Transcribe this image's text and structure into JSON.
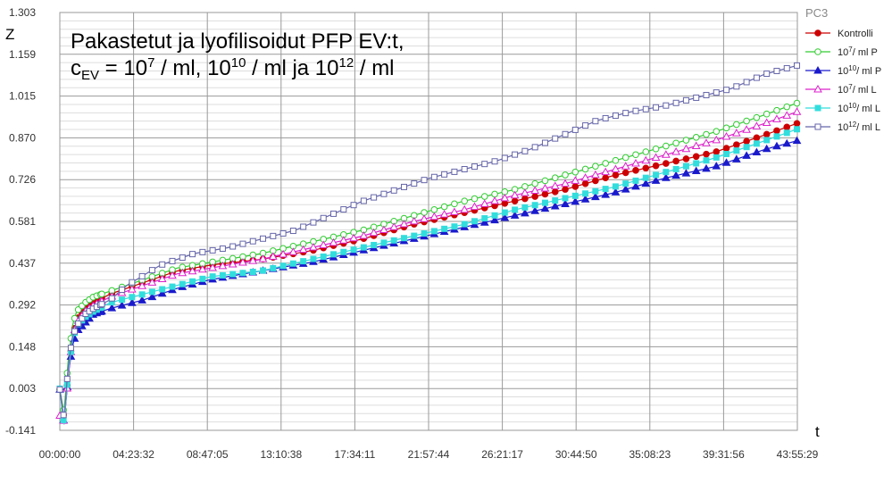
{
  "chart_data": {
    "type": "line",
    "title_line1": "Pakastetut ja lyofilisoidut PFP EV:t,",
    "title_line2": {
      "c": "c",
      "c_sub": "EV",
      "eq": " = 10",
      "e1": "7",
      "mid1": " / ml, 10",
      "e2": "10",
      "mid2": " / ml ja 10",
      "e3": "12",
      "end": " / ml"
    },
    "xlabel": "t",
    "ylabel": "Z",
    "legend_title": "PC3",
    "x_ticks": [
      "00:00:00",
      "04:23:32",
      "08:47:05",
      "13:10:38",
      "17:34:11",
      "21:57:44",
      "26:21:17",
      "30:44:50",
      "35:08:23",
      "39:31:56",
      "43:55:29"
    ],
    "y_ticks": [
      "1.303",
      "1.159",
      "1.015",
      "0.870",
      "0.726",
      "0.581",
      "0.437",
      "0.292",
      "0.148",
      "0.003",
      "-0.141"
    ],
    "x_range_hours": [
      0,
      43.925
    ],
    "y_range": [
      -0.141,
      1.303
    ],
    "grid": true,
    "legend_position": "right",
    "series": [
      {
        "name": "Kontrolli",
        "label": {
          "base": "Kontrolli",
          "sup": "",
          "rest": ""
        },
        "color": "#cc0000",
        "marker": "circle",
        "filled": true,
        "points": [
          [
            0,
            0.0
          ],
          [
            0.25,
            -0.1
          ],
          [
            0.5,
            0.05
          ],
          [
            0.75,
            0.18
          ],
          [
            1.0,
            0.24
          ],
          [
            1.5,
            0.28
          ],
          [
            2,
            0.3
          ],
          [
            3,
            0.33
          ],
          [
            5,
            0.37
          ],
          [
            7,
            0.41
          ],
          [
            9,
            0.43
          ],
          [
            12,
            0.45
          ],
          [
            15,
            0.48
          ],
          [
            18,
            0.52
          ],
          [
            21,
            0.57
          ],
          [
            24,
            0.61
          ],
          [
            27,
            0.65
          ],
          [
            30,
            0.69
          ],
          [
            33,
            0.74
          ],
          [
            36,
            0.78
          ],
          [
            39,
            0.82
          ],
          [
            42,
            0.88
          ],
          [
            43.92,
            0.92
          ]
        ]
      },
      {
        "name": "10^7/ ml P",
        "label": {
          "base": "10",
          "sup": "7",
          "rest": "/ ml P"
        },
        "color": "#33cc33",
        "marker": "circle",
        "filled": false,
        "points": [
          [
            0,
            0.0
          ],
          [
            0.25,
            -0.08
          ],
          [
            0.5,
            0.1
          ],
          [
            0.75,
            0.22
          ],
          [
            1.0,
            0.27
          ],
          [
            1.5,
            0.3
          ],
          [
            2,
            0.32
          ],
          [
            3,
            0.34
          ],
          [
            5,
            0.38
          ],
          [
            7,
            0.42
          ],
          [
            9,
            0.44
          ],
          [
            12,
            0.47
          ],
          [
            15,
            0.51
          ],
          [
            18,
            0.55
          ],
          [
            21,
            0.6
          ],
          [
            24,
            0.65
          ],
          [
            27,
            0.69
          ],
          [
            30,
            0.74
          ],
          [
            33,
            0.79
          ],
          [
            36,
            0.84
          ],
          [
            39,
            0.89
          ],
          [
            42,
            0.95
          ],
          [
            43.92,
            0.99
          ]
        ]
      },
      {
        "name": "10^10/ ml P",
        "label": {
          "base": "10",
          "sup": "10",
          "rest": "/ ml P"
        },
        "color": "#1a1acc",
        "marker": "triangle",
        "filled": true,
        "points": [
          [
            0,
            0.0
          ],
          [
            0.25,
            -0.12
          ],
          [
            0.5,
            0.05
          ],
          [
            0.75,
            0.15
          ],
          [
            1.0,
            0.2
          ],
          [
            1.5,
            0.23
          ],
          [
            2,
            0.26
          ],
          [
            3,
            0.28
          ],
          [
            5,
            0.31
          ],
          [
            7,
            0.35
          ],
          [
            9,
            0.38
          ],
          [
            12,
            0.41
          ],
          [
            15,
            0.44
          ],
          [
            18,
            0.48
          ],
          [
            21,
            0.52
          ],
          [
            24,
            0.56
          ],
          [
            27,
            0.6
          ],
          [
            30,
            0.64
          ],
          [
            33,
            0.68
          ],
          [
            36,
            0.73
          ],
          [
            39,
            0.77
          ],
          [
            42,
            0.83
          ],
          [
            43.92,
            0.86
          ]
        ]
      },
      {
        "name": "10^7/ ml L",
        "label": {
          "base": "10",
          "sup": "7",
          "rest": "/ ml L"
        },
        "color": "#dd22cc",
        "marker": "triangle",
        "filled": false,
        "points": [
          [
            0,
            -0.09
          ],
          [
            0.25,
            -0.11
          ],
          [
            0.5,
            0.04
          ],
          [
            0.75,
            0.18
          ],
          [
            1.0,
            0.23
          ],
          [
            1.5,
            0.27
          ],
          [
            2,
            0.29
          ],
          [
            3,
            0.32
          ],
          [
            5,
            0.36
          ],
          [
            7,
            0.4
          ],
          [
            9,
            0.42
          ],
          [
            12,
            0.45
          ],
          [
            15,
            0.49
          ],
          [
            18,
            0.53
          ],
          [
            21,
            0.58
          ],
          [
            24,
            0.62
          ],
          [
            27,
            0.67
          ],
          [
            30,
            0.71
          ],
          [
            33,
            0.76
          ],
          [
            36,
            0.81
          ],
          [
            39,
            0.86
          ],
          [
            42,
            0.92
          ],
          [
            43.92,
            0.96
          ]
        ]
      },
      {
        "name": "10^10/ ml L",
        "label": {
          "base": "10",
          "sup": "10",
          "rest": "/ ml L"
        },
        "color": "#33dddd",
        "marker": "square",
        "filled": true,
        "points": [
          [
            0,
            0.003
          ],
          [
            0.25,
            -0.12
          ],
          [
            0.5,
            0.06
          ],
          [
            0.75,
            0.17
          ],
          [
            1.0,
            0.22
          ],
          [
            1.5,
            0.25
          ],
          [
            2,
            0.27
          ],
          [
            3,
            0.3
          ],
          [
            5,
            0.33
          ],
          [
            7,
            0.36
          ],
          [
            9,
            0.39
          ],
          [
            12,
            0.41
          ],
          [
            15,
            0.45
          ],
          [
            18,
            0.49
          ],
          [
            21,
            0.53
          ],
          [
            24,
            0.57
          ],
          [
            27,
            0.62
          ],
          [
            30,
            0.66
          ],
          [
            33,
            0.7
          ],
          [
            36,
            0.75
          ],
          [
            39,
            0.8
          ],
          [
            42,
            0.86
          ],
          [
            43.92,
            0.9
          ]
        ]
      },
      {
        "name": "10^12/ ml L",
        "label": {
          "base": "10",
          "sup": "12",
          "rest": "/ ml L"
        },
        "color": "#6666aa",
        "marker": "square",
        "filled": false,
        "points": [
          [
            0,
            0.0
          ],
          [
            0.25,
            -0.1
          ],
          [
            0.5,
            0.08
          ],
          [
            0.75,
            0.18
          ],
          [
            1.0,
            0.22
          ],
          [
            1.5,
            0.26
          ],
          [
            2,
            0.28
          ],
          [
            3,
            0.31
          ],
          [
            4,
            0.36
          ],
          [
            6,
            0.43
          ],
          [
            8,
            0.47
          ],
          [
            10,
            0.49
          ],
          [
            12,
            0.52
          ],
          [
            14,
            0.55
          ],
          [
            16,
            0.6
          ],
          [
            18,
            0.65
          ],
          [
            20,
            0.69
          ],
          [
            22,
            0.73
          ],
          [
            24,
            0.76
          ],
          [
            26,
            0.79
          ],
          [
            28,
            0.83
          ],
          [
            30,
            0.88
          ],
          [
            32,
            0.93
          ],
          [
            34,
            0.96
          ],
          [
            36,
            0.98
          ],
          [
            38,
            1.01
          ],
          [
            40,
            1.04
          ],
          [
            42,
            1.09
          ],
          [
            43.92,
            1.12
          ]
        ]
      }
    ]
  }
}
